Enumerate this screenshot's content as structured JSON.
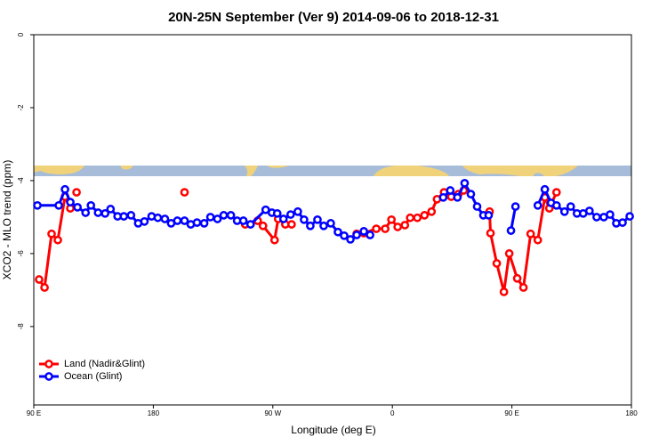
{
  "chart_data": {
    "type": "line",
    "title": "20N-25N September (Ver 9)   2014-09-06 to 2018-12-31",
    "x_label": "Longitude (deg E)",
    "y_label": "XCO2 - MLO trend (ppm)",
    "xlim": [
      90,
      540
    ],
    "ylim": [
      -10.15,
      0
    ],
    "xticks": [
      {
        "value": 90,
        "label": "90 E"
      },
      180,
      {
        "value": 270,
        "label": "90 W"
      },
      {
        "value": 360,
        "label": "0"
      },
      {
        "value": 450,
        "label": "90 E"
      },
      {
        "value": 540,
        "label": "180"
      }
    ],
    "yticks": [
      0,
      -2,
      -4,
      -6,
      -8
    ],
    "legend": "bottomleft",
    "series": [
      {
        "name": "Land (Nadir&Glint)",
        "color": "#ff0000",
        "x": [
          94.0,
          98.1,
          103.4,
          108.1,
          113.5,
          117.5,
          null,
          122.2,
          null,
          203.5,
          null,
          249.2,
          258.6,
          262.6,
          271.3,
          274.0,
          279.4,
          284.1,
          null,
          333.1,
          338.5,
          347.9,
          354.6,
          359.3,
          364.0,
          369.4,
          373.4,
          378.8,
          384.2,
          389.5,
          393.6,
          398.9,
          404.3,
          409.7,
          413.7,
          null,
          433.2,
          433.9,
          438.6,
          444.0,
          448.0,
          454.0,
          458.7,
          464.1,
          469.5,
          474.8,
          478.2,
          483.6
        ],
        "values": [
          -6.71,
          -6.93,
          -5.46,
          -5.63,
          -4.44,
          -4.76,
          null,
          -4.32,
          null,
          -4.32,
          null,
          -5.2,
          -5.1,
          -5.24,
          -5.63,
          -5.05,
          -5.2,
          -5.2,
          null,
          -5.46,
          -5.44,
          -5.32,
          -5.32,
          -5.07,
          -5.27,
          -5.22,
          -5.02,
          -5.02,
          -4.95,
          -4.85,
          -4.51,
          -4.32,
          -4.44,
          -4.37,
          -4.27,
          null,
          -4.85,
          -5.44,
          -6.27,
          -7.05,
          -6.0,
          -6.68,
          -6.93,
          -5.46,
          -5.63,
          -4.46,
          -4.76,
          -4.32
        ]
      },
      {
        "name": "Ocean (Glint)",
        "color": "#0000ff",
        "x": [
          92.7,
          108.8,
          113.5,
          117.5,
          122.9,
          129.0,
          133.0,
          138.4,
          143.7,
          147.8,
          153.1,
          157.8,
          163.2,
          168.6,
          173.3,
          178.7,
          183.4,
          188.7,
          193.4,
          198.1,
          203.5,
          208.2,
          212.9,
          218.3,
          223.0,
          228.3,
          233.0,
          238.4,
          243.1,
          247.8,
          253.2,
          264.6,
          269.3,
          273.3,
          278.0,
          283.4,
          288.8,
          293.5,
          298.2,
          303.6,
          308.3,
          313.6,
          319.0,
          323.7,
          328.4,
          333.1,
          338.5,
          343.2,
          null,
          398.3,
          403.6,
          409.0,
          414.4,
          419.1,
          423.8,
          428.5,
          432.5,
          null,
          449.3,
          452.7,
          null,
          469.5,
          474.8,
          479.5,
          483.6,
          489.6,
          494.3,
          499.0,
          503.7,
          508.4,
          513.8,
          519.2,
          523.9,
          528.6,
          533.3,
          538.7
        ],
        "values": [
          -4.68,
          -4.68,
          -4.24,
          -4.59,
          -4.73,
          -4.88,
          -4.68,
          -4.88,
          -4.9,
          -4.78,
          -4.98,
          -4.98,
          -4.95,
          -5.17,
          -5.12,
          -4.98,
          -5.02,
          -5.05,
          -5.17,
          -5.1,
          -5.1,
          -5.2,
          -5.15,
          -5.17,
          -5.0,
          -5.05,
          -4.95,
          -4.95,
          -5.1,
          -5.1,
          -5.2,
          -4.8,
          -4.88,
          -4.9,
          -5.05,
          -4.93,
          -4.85,
          -5.07,
          -5.24,
          -5.07,
          -5.24,
          -5.17,
          -5.41,
          -5.51,
          -5.61,
          -5.49,
          -5.39,
          -5.49,
          null,
          -4.46,
          -4.27,
          -4.46,
          -4.07,
          -4.37,
          -4.71,
          -4.95,
          -4.95,
          null,
          -5.37,
          -4.71,
          null,
          -4.68,
          -4.24,
          -4.61,
          -4.68,
          -4.85,
          -4.71,
          -4.9,
          -4.9,
          -4.83,
          -5.0,
          -5.0,
          -4.93,
          -5.17,
          -5.15,
          -4.98
        ]
      }
    ]
  }
}
